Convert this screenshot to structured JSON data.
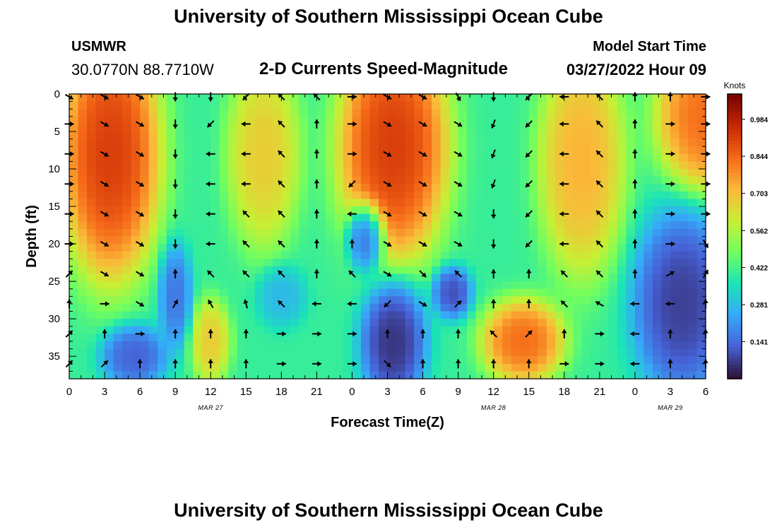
{
  "header": {
    "title": "University of Southern Mississippi Ocean Cube",
    "station_id": "USMWR",
    "coords": "30.0770N  88.7710W",
    "subtitle": "2-D Currents Speed-Magnitude",
    "model_label": "Model Start Time",
    "model_time": "03/27/2022 Hour 09"
  },
  "footer": {
    "title": "University of Southern Mississippi Ocean Cube"
  },
  "chart_data": {
    "type": "heatmap",
    "xlabel": "Forecast Time(Z)",
    "ylabel": "Depth (ft)",
    "xlim": [
      0,
      54
    ],
    "ylim": [
      38,
      0
    ],
    "x_tick_values": [
      0,
      3,
      6,
      9,
      12,
      15,
      18,
      21,
      24,
      27,
      30,
      33,
      36,
      39,
      42,
      45,
      48,
      51,
      54
    ],
    "x_tick_labels": [
      "0",
      "3",
      "6",
      "9",
      "12",
      "15",
      "18",
      "21",
      "0",
      "3",
      "6",
      "9",
      "12",
      "15",
      "18",
      "21",
      "0",
      "3",
      "6"
    ],
    "date_labels": [
      {
        "x": 12,
        "text": "MAR 27"
      },
      {
        "x": 36,
        "text": "MAR 28"
      },
      {
        "x": 51,
        "text": "MAR 29"
      }
    ],
    "y_tick_values": [
      0,
      5,
      10,
      15,
      20,
      25,
      30,
      35
    ],
    "y_tick_labels": [
      "0",
      "5",
      "10",
      "15",
      "20",
      "25",
      "30",
      "35"
    ],
    "colorbar": {
      "title": "Knots",
      "min": 0.0,
      "max": 1.08,
      "tick_values": [
        0.984,
        0.844,
        0.703,
        0.562,
        0.422,
        0.281,
        0.141
      ],
      "tick_labels": [
        "0.984",
        "0.844",
        "0.703",
        "0.562",
        "0.422",
        "0.281",
        "0.141"
      ],
      "colormap": [
        "#30123b",
        "#4662d7",
        "#36aaf9",
        "#1ae4b6",
        "#72fe5e",
        "#c8ef34",
        "#faba39",
        "#f66b19",
        "#ca2a04",
        "#7a0403"
      ]
    },
    "field_hotspots": [
      {
        "name": "core-1",
        "x": 3.5,
        "depth": 8,
        "sx": 3.0,
        "sd": 12,
        "value": 1.0
      },
      {
        "name": "core-2",
        "x": 16.5,
        "depth": 8,
        "sx": 2.2,
        "sd": 9,
        "value": 0.72
      },
      {
        "name": "core-3",
        "x": 27.5,
        "depth": 7,
        "sx": 3.3,
        "sd": 11,
        "value": 1.0
      },
      {
        "name": "core-4",
        "x": 43.5,
        "depth": 9,
        "sx": 2.6,
        "sd": 11,
        "value": 0.78
      },
      {
        "name": "core-5",
        "x": 12.0,
        "depth": 33,
        "sx": 1.2,
        "sd": 4,
        "value": 0.72
      },
      {
        "name": "core-6",
        "x": 38.5,
        "depth": 33,
        "sx": 2.5,
        "sd": 4,
        "value": 0.9
      },
      {
        "name": "core-7",
        "x": 54.0,
        "depth": 3,
        "sx": 3.0,
        "sd": 7,
        "value": 0.9
      },
      {
        "name": "low-1",
        "x": 25.2,
        "depth": 19,
        "sx": 1.2,
        "sd": 3.5,
        "value": 0.05
      },
      {
        "name": "low-2",
        "x": 27.5,
        "depth": 33,
        "sx": 2.0,
        "sd": 6,
        "value": 0.0
      },
      {
        "name": "low-3",
        "x": 32.5,
        "depth": 26.5,
        "sx": 1.2,
        "sd": 2.5,
        "value": 0.05
      },
      {
        "name": "low-4",
        "x": 5.5,
        "depth": 35,
        "sx": 2.0,
        "sd": 3,
        "value": 0.08
      },
      {
        "name": "low-5",
        "x": 9.0,
        "depth": 27,
        "sx": 1.0,
        "sd": 5,
        "value": 0.12
      },
      {
        "name": "low-6",
        "x": 52.0,
        "depth": 28,
        "sx": 3.0,
        "sd": 9,
        "value": 0.02
      },
      {
        "name": "low-7",
        "x": 18.0,
        "depth": 27,
        "sx": 1.5,
        "sd": 3,
        "value": 0.25
      }
    ],
    "vectors": {
      "times": [
        0,
        3,
        6,
        9,
        12,
        15,
        18,
        21,
        24,
        27,
        30,
        33,
        36,
        39,
        42,
        45,
        48,
        51,
        54
      ],
      "depths": [
        0,
        4,
        8,
        12,
        16,
        20,
        24,
        28,
        32,
        36
      ],
      "direction_deg": [
        [
          120,
          120,
          120,
          180,
          180,
          225,
          315,
          315,
          90,
          120,
          120,
          150,
          180,
          225,
          270,
          315,
          0,
          0,
          90
        ],
        [
          90,
          120,
          120,
          180,
          225,
          270,
          315,
          0,
          90,
          120,
          120,
          120,
          200,
          225,
          270,
          315,
          0,
          90,
          90
        ],
        [
          90,
          120,
          120,
          180,
          270,
          270,
          315,
          0,
          90,
          120,
          120,
          120,
          200,
          225,
          270,
          315,
          0,
          90,
          90
        ],
        [
          90,
          120,
          120,
          180,
          270,
          270,
          315,
          0,
          225,
          120,
          120,
          120,
          200,
          225,
          270,
          315,
          0,
          90,
          90
        ],
        [
          90,
          120,
          120,
          180,
          270,
          315,
          315,
          0,
          270,
          120,
          120,
          120,
          180,
          225,
          270,
          315,
          0,
          90,
          90
        ],
        [
          90,
          120,
          120,
          180,
          270,
          315,
          315,
          0,
          0,
          120,
          120,
          120,
          180,
          225,
          270,
          315,
          0,
          90,
          150
        ],
        [
          45,
          120,
          120,
          0,
          315,
          315,
          315,
          0,
          315,
          120,
          135,
          315,
          0,
          0,
          315,
          315,
          0,
          60,
          30
        ],
        [
          0,
          90,
          120,
          30,
          330,
          345,
          315,
          270,
          270,
          225,
          120,
          45,
          0,
          0,
          315,
          300,
          270,
          270,
          0
        ],
        [
          45,
          0,
          90,
          0,
          0,
          0,
          90,
          90,
          90,
          0,
          0,
          0,
          315,
          45,
          0,
          90,
          270,
          0,
          0
        ],
        [
          45,
          45,
          0,
          0,
          0,
          0,
          90,
          90,
          90,
          135,
          0,
          0,
          0,
          0,
          90,
          90,
          270,
          0,
          0
        ]
      ]
    }
  }
}
